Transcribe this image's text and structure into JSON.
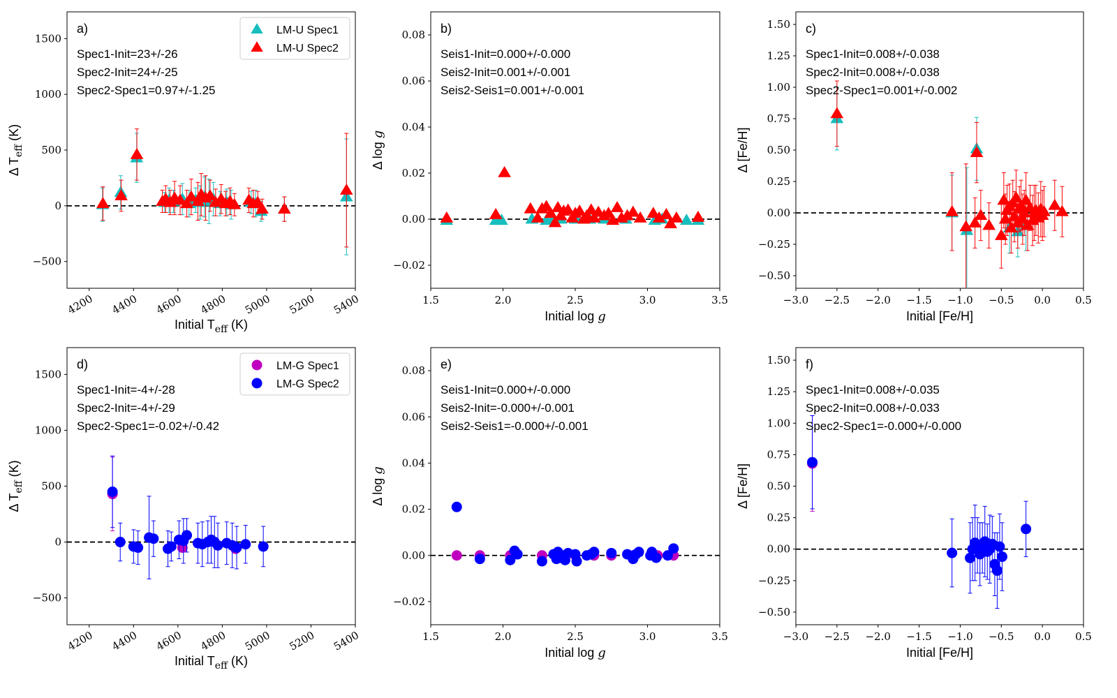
{
  "colors": {
    "spec1_triangle": "#17bebe",
    "spec2_triangle": "#ff0000",
    "spec1_circle": "#bf00bf",
    "spec2_circle": "#0000ff",
    "zero_line": "#000000"
  },
  "chart_data": [
    {
      "id": "a",
      "type": "scatter",
      "panel_label": "a)",
      "xlabel_main": "Initial T",
      "xlabel_sub": "eff",
      "xlabel_tail": " (K)",
      "ylabel_main": "Δ T",
      "ylabel_sub": "eff",
      "ylabel_tail": " (K)",
      "xlim": [
        4100,
        5400
      ],
      "ylim": [
        -740,
        1740
      ],
      "xticks": [
        4200,
        4400,
        4600,
        4800,
        5000,
        5200,
        5400
      ],
      "xtick_rotation": -30,
      "yticks": [
        -500,
        0,
        500,
        1000,
        1500
      ],
      "ytick_labels": [
        "−500",
        "0",
        "500",
        "1000",
        "1500"
      ],
      "xtick_labels": [
        "4200",
        "4400",
        "4600",
        "4800",
        "5000",
        "5200",
        "5400"
      ],
      "marker": "triangle",
      "legend": [
        "LM-U Spec1",
        "LM-U Spec2"
      ],
      "annotations": [
        "Spec1-Init=23+/-26",
        "Spec2-Init=24+/-25",
        "Spec2-Spec1=0.97+/-1.25"
      ],
      "series": [
        {
          "name": "LM-U Spec1",
          "color_key": "spec1_triangle",
          "x": [
            4260,
            4342,
            4414,
            4540,
            4560,
            4580,
            4620,
            4650,
            4680,
            4700,
            4720,
            4740,
            4760,
            4790,
            4820,
            4840,
            4930,
            4950,
            4975,
            5080,
            5360
          ],
          "y": [
            10,
            120,
            430,
            30,
            50,
            40,
            60,
            20,
            50,
            30,
            80,
            40,
            60,
            20,
            30,
            10,
            30,
            20,
            -50,
            -30,
            80
          ],
          "err": [
            150,
            150,
            220,
            90,
            110,
            100,
            140,
            120,
            110,
            150,
            180,
            200,
            150,
            110,
            120,
            130,
            100,
            120,
            90,
            110,
            520
          ]
        },
        {
          "name": "LM-U Spec2",
          "color_key": "spec2_triangle",
          "x": [
            4262,
            4344,
            4415,
            4530,
            4545,
            4565,
            4585,
            4610,
            4640,
            4660,
            4690,
            4705,
            4725,
            4745,
            4770,
            4795,
            4815,
            4835,
            4855,
            4920,
            4940,
            4960,
            4980,
            5080,
            5360
          ],
          "y": [
            20,
            90,
            460,
            40,
            60,
            30,
            70,
            50,
            20,
            80,
            40,
            100,
            70,
            90,
            30,
            60,
            20,
            40,
            10,
            50,
            20,
            30,
            -30,
            -30,
            140
          ],
          "err": [
            150,
            140,
            230,
            100,
            120,
            110,
            150,
            130,
            120,
            160,
            170,
            190,
            200,
            140,
            120,
            130,
            110,
            120,
            100,
            110,
            120,
            100,
            90,
            110,
            510
          ]
        }
      ]
    },
    {
      "id": "b",
      "type": "scatter",
      "panel_label": "b)",
      "xlabel_main": "Initial log ",
      "xlabel_italic": "g",
      "ylabel_main": "Δ log ",
      "ylabel_italic": "g",
      "xlim": [
        1.5,
        3.5
      ],
      "ylim": [
        -0.03,
        0.09
      ],
      "xticks": [
        1.5,
        2.0,
        2.5,
        3.0,
        3.5
      ],
      "xtick_labels": [
        "1.5",
        "2.0",
        "2.5",
        "3.0",
        "3.5"
      ],
      "xtick_rotation": 0,
      "yticks": [
        -0.02,
        0.0,
        0.02,
        0.04,
        0.06,
        0.08
      ],
      "ytick_labels": [
        "−0.02",
        "0.00",
        "0.02",
        "0.04",
        "0.06",
        "0.08"
      ],
      "marker": "triangle",
      "annotations": [
        "Seis1-Init=0.000+/-0.000",
        "Seis2-Init=0.001+/-0.001",
        "Seis2-Seis1=0.001+/-0.001"
      ],
      "series": [
        {
          "name": "Spec1",
          "color_key": "spec1_triangle",
          "x": [
            1.61,
            1.95,
            1.99,
            2.2,
            2.3,
            2.34,
            2.4,
            2.5,
            2.6,
            2.7,
            2.85,
            3.05,
            3.1,
            3.27,
            3.35
          ],
          "y": [
            -0.0005,
            -0.0005,
            -0.0005,
            0.0,
            -0.0005,
            -0.0005,
            0.0,
            0.0,
            0.0,
            0.0,
            0.0,
            -0.0005,
            0.0,
            -0.0005,
            -0.0005
          ]
        },
        {
          "name": "Spec2",
          "color_key": "spec2_triangle",
          "x": [
            1.61,
            1.95,
            2.01,
            2.19,
            2.24,
            2.27,
            2.3,
            2.33,
            2.36,
            2.38,
            2.4,
            2.42,
            2.45,
            2.48,
            2.5,
            2.53,
            2.56,
            2.58,
            2.61,
            2.63,
            2.66,
            2.7,
            2.73,
            2.76,
            2.79,
            2.82,
            2.86,
            2.9,
            2.95,
            3.04,
            3.08,
            3.13,
            3.16,
            3.2,
            3.35
          ],
          "y": [
            0.0005,
            0.002,
            0.0202,
            0.0045,
            0.0005,
            0.0045,
            0.0055,
            0.0025,
            -0.0015,
            0.005,
            0.0015,
            0.0035,
            0.004,
            0.0005,
            0.0025,
            0.0035,
            0.0,
            0.0015,
            0.004,
            0.0005,
            0.003,
            0.0015,
            0.0025,
            -0.0005,
            0.005,
            0.0005,
            0.0015,
            0.003,
            0.0005,
            0.0025,
            0.0005,
            0.002,
            -0.002,
            0.0005,
            0.0008
          ]
        }
      ]
    },
    {
      "id": "c",
      "type": "scatter",
      "panel_label": "c)",
      "xlabel_main": "Initial [Fe/H]",
      "ylabel_main": "Δ [Fe/H]",
      "xlim": [
        -3.0,
        0.5
      ],
      "ylim": [
        -0.6,
        1.6
      ],
      "xticks": [
        -3.0,
        -2.5,
        -2.0,
        -1.5,
        -1.0,
        -0.5,
        0.0,
        0.5
      ],
      "xtick_labels": [
        "−3.0",
        "−2.5",
        "−2.0",
        "−1.5",
        "−1.0",
        "−0.5",
        "0.0",
        "0.5"
      ],
      "xtick_rotation": 0,
      "yticks": [
        -0.5,
        -0.25,
        0.0,
        0.25,
        0.5,
        0.75,
        1.0,
        1.25,
        1.5
      ],
      "ytick_labels": [
        "−0.50",
        "−0.25",
        "0.00",
        "0.25",
        "0.50",
        "0.75",
        "1.00",
        "1.25",
        "1.50"
      ],
      "marker": "triangle",
      "annotations": [
        "Spec1-Init=0.008+/-0.038",
        "Spec2-Init=0.008+/-0.038",
        "Spec2-Spec1=0.001+/-0.002"
      ],
      "series": [
        {
          "name": "Spec1",
          "color_key": "spec1_triangle",
          "x": [
            -2.5,
            -0.8,
            -0.92,
            -1.1,
            -0.4,
            -0.3,
            -0.2
          ],
          "y": [
            0.75,
            0.51,
            -0.14,
            0.0,
            -0.12,
            -0.15,
            -0.1
          ],
          "err": [
            0.25,
            0.25,
            0.5,
            0.3,
            0.2,
            0.2,
            0.2
          ]
        },
        {
          "name": "Spec2",
          "color_key": "spec2_triangle",
          "x": [
            -2.5,
            -1.1,
            -0.93,
            -0.82,
            -0.8,
            -0.75,
            -0.65,
            -0.5,
            -0.47,
            -0.45,
            -0.43,
            -0.4,
            -0.38,
            -0.36,
            -0.34,
            -0.32,
            -0.3,
            -0.28,
            -0.26,
            -0.24,
            -0.22,
            -0.2,
            -0.18,
            -0.15,
            -0.12,
            -0.1,
            -0.08,
            -0.05,
            -0.02,
            0.0,
            0.02,
            0.15,
            0.24
          ],
          "y": [
            0.79,
            0.01,
            -0.11,
            -0.08,
            0.48,
            -0.02,
            -0.1,
            -0.18,
            0.1,
            -0.05,
            0.02,
            0.05,
            -0.12,
            0.08,
            -0.03,
            0.12,
            -0.08,
            0.03,
            0.06,
            -0.05,
            0.0,
            0.1,
            -0.1,
            0.04,
            -0.06,
            0.0,
            0.02,
            -0.04,
            0.03,
            -0.02,
            0.01,
            0.06,
            0.01
          ],
          "err": [
            0.26,
            0.31,
            0.5,
            0.2,
            0.24,
            0.2,
            0.18,
            0.26,
            0.22,
            0.2,
            0.2,
            0.18,
            0.2,
            0.18,
            0.2,
            0.22,
            0.2,
            0.18,
            0.2,
            0.2,
            0.18,
            0.22,
            0.2,
            0.18,
            0.2,
            0.22,
            0.2,
            0.2,
            0.22,
            0.2,
            0.2,
            0.2,
            0.2
          ]
        }
      ]
    },
    {
      "id": "d",
      "type": "scatter",
      "panel_label": "d)",
      "xlabel_main": "Initial T",
      "xlabel_sub": "eff",
      "xlabel_tail": " (K)",
      "ylabel_main": "Δ T",
      "ylabel_sub": "eff",
      "ylabel_tail": " (K)",
      "xlim": [
        4100,
        5400
      ],
      "ylim": [
        -740,
        1740
      ],
      "xticks": [
        4200,
        4400,
        4600,
        4800,
        5000,
        5200,
        5400
      ],
      "xtick_labels": [
        "4200",
        "4400",
        "4600",
        "4800",
        "5000",
        "5200",
        "5400"
      ],
      "xtick_rotation": -30,
      "yticks": [
        -500,
        0,
        500,
        1000,
        1500
      ],
      "ytick_labels": [
        "−500",
        "0",
        "500",
        "1000",
        "1500"
      ],
      "marker": "circle",
      "legend": [
        "LM-G Spec1",
        "LM-G Spec2"
      ],
      "annotations": [
        "Spec1-Init=-4+/-28",
        "Spec2-Init=-4+/-29",
        "Spec2-Spec1=-0.02+/-0.42"
      ],
      "series": [
        {
          "name": "LM-G Spec1",
          "color_key": "spec1_circle",
          "x": [
            4305,
            4620,
            4860
          ],
          "y": [
            430,
            -50,
            -60
          ],
          "err": [
            330,
            0,
            0
          ]
        },
        {
          "name": "LM-G Spec2",
          "color_key": "spec2_circle",
          "x": [
            4305,
            4340,
            4400,
            4420,
            4470,
            4490,
            4555,
            4570,
            4605,
            4625,
            4640,
            4690,
            4710,
            4735,
            4750,
            4765,
            4780,
            4820,
            4845,
            4865,
            4905,
            4985
          ],
          "y": [
            450,
            0,
            -40,
            -50,
            40,
            30,
            -60,
            -40,
            20,
            10,
            60,
            -10,
            -20,
            0,
            20,
            0,
            -30,
            -10,
            -30,
            -50,
            -20,
            -40
          ],
          "err": [
            320,
            170,
            150,
            150,
            370,
            160,
            160,
            130,
            170,
            200,
            150,
            180,
            200,
            190,
            210,
            230,
            200,
            190,
            200,
            190,
            170,
            180
          ]
        }
      ]
    },
    {
      "id": "e",
      "type": "scatter",
      "panel_label": "e)",
      "xlabel_main": "Initial log ",
      "xlabel_italic": "g",
      "ylabel_main": "Δ log ",
      "ylabel_italic": "g",
      "xlim": [
        1.5,
        3.5
      ],
      "ylim": [
        -0.03,
        0.09
      ],
      "xticks": [
        1.5,
        2.0,
        2.5,
        3.0,
        3.5
      ],
      "xtick_labels": [
        "1.5",
        "2.0",
        "2.5",
        "3.0",
        "3.5"
      ],
      "xtick_rotation": 0,
      "yticks": [
        -0.02,
        0.0,
        0.02,
        0.04,
        0.06,
        0.08
      ],
      "ytick_labels": [
        "−0.02",
        "0.00",
        "0.02",
        "0.04",
        "0.06",
        "0.08"
      ],
      "marker": "circle",
      "annotations": [
        "Seis1-Init=0.000+/-0.000",
        "Seis2-Init=-0.000+/-0.001",
        "Seis2-Seis1=-0.000+/-0.001"
      ],
      "series": [
        {
          "name": "Spec1",
          "color_key": "spec1_circle",
          "x": [
            1.68,
            1.84,
            2.05,
            2.27,
            2.4,
            2.5,
            2.63,
            2.75,
            2.9,
            3.07,
            3.18
          ],
          "y": [
            0.0,
            0.0,
            0.0,
            0.0,
            0.0,
            0.0,
            0.0,
            0.0,
            0.0,
            0.0,
            0.0
          ]
        },
        {
          "name": "Spec2",
          "color_key": "spec2_circle",
          "x": [
            1.68,
            1.84,
            2.05,
            2.08,
            2.1,
            2.27,
            2.35,
            2.37,
            2.38,
            2.4,
            2.41,
            2.43,
            2.45,
            2.5,
            2.51,
            2.58,
            2.61,
            2.63,
            2.75,
            2.86,
            2.9,
            2.92,
            2.94,
            3.02,
            3.03,
            3.06,
            3.14,
            3.18
          ],
          "y": [
            0.021,
            -0.0015,
            -0.002,
            0.002,
            0.0005,
            -0.0025,
            0.0005,
            -0.0015,
            0.0015,
            -0.001,
            0.0,
            -0.002,
            0.001,
            0.0005,
            -0.0025,
            0.0,
            0.0005,
            0.0015,
            0.001,
            0.0005,
            -0.0015,
            0.0005,
            0.0015,
            0.0,
            0.0015,
            -0.001,
            0.0,
            0.003
          ]
        }
      ]
    },
    {
      "id": "f",
      "type": "scatter",
      "panel_label": "f)",
      "xlabel_main": "Initial [Fe/H]",
      "ylabel_main": "Δ [Fe/H]",
      "xlim": [
        -3.0,
        0.5
      ],
      "ylim": [
        -0.6,
        1.6
      ],
      "xticks": [
        -3.0,
        -2.5,
        -2.0,
        -1.5,
        -1.0,
        -0.5,
        0.0,
        0.5
      ],
      "xtick_labels": [
        "−3.0",
        "−2.5",
        "−2.0",
        "−1.5",
        "−1.0",
        "−0.5",
        "0.0",
        "0.5"
      ],
      "xtick_rotation": 0,
      "yticks": [
        -0.5,
        -0.25,
        0.0,
        0.25,
        0.5,
        0.75,
        1.0,
        1.25,
        1.5
      ],
      "ytick_labels": [
        "−0.50",
        "−0.25",
        "0.00",
        "0.25",
        "0.50",
        "0.75",
        "1.00",
        "1.25",
        "1.50"
      ],
      "marker": "circle",
      "annotations": [
        "Spec1-Init=0.008+/-0.035",
        "Spec2-Init=0.008+/-0.033",
        "Spec2-Spec1=-0.000+/-0.000"
      ],
      "series": [
        {
          "name": "Spec1",
          "color_key": "spec1_circle",
          "x": [
            -2.8,
            -0.55
          ],
          "y": [
            0.68,
            -0.17
          ],
          "err": [
            0.38,
            0.0
          ]
        },
        {
          "name": "Spec2",
          "color_key": "spec2_circle",
          "x": [
            -2.8,
            -1.1,
            -0.88,
            -0.85,
            -0.82,
            -0.79,
            -0.76,
            -0.73,
            -0.7,
            -0.67,
            -0.64,
            -0.61,
            -0.58,
            -0.55,
            -0.52,
            -0.49,
            -0.2
          ],
          "y": [
            0.69,
            -0.03,
            -0.07,
            0.0,
            0.05,
            0.03,
            -0.04,
            0.01,
            0.06,
            -0.02,
            0.0,
            0.04,
            -0.12,
            -0.17,
            0.02,
            -0.06,
            0.16
          ],
          "err": [
            0.37,
            0.27,
            0.28,
            0.25,
            0.3,
            0.22,
            0.25,
            0.2,
            0.28,
            0.22,
            0.27,
            0.22,
            0.25,
            0.3,
            0.26,
            0.27,
            0.22
          ]
        }
      ]
    }
  ]
}
